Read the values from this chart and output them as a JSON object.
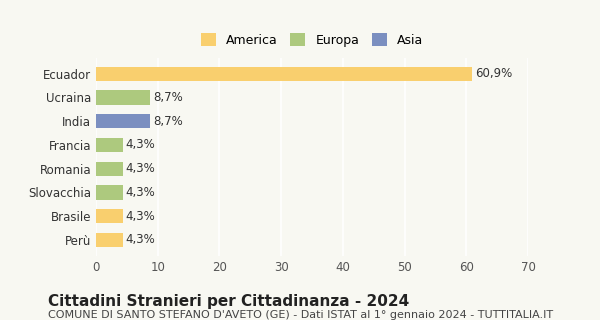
{
  "categories": [
    "Perù",
    "Brasile",
    "Slovacchia",
    "Romania",
    "Francia",
    "India",
    "Ucraina",
    "Ecuador"
  ],
  "values": [
    4.3,
    4.3,
    4.3,
    4.3,
    4.3,
    8.7,
    8.7,
    60.9
  ],
  "colors": [
    "#f9cf6e",
    "#f9cf6e",
    "#adc97e",
    "#adc97e",
    "#adc97e",
    "#7b8fc0",
    "#adc97e",
    "#f9cf6e"
  ],
  "labels": [
    "4,3%",
    "4,3%",
    "4,3%",
    "4,3%",
    "4,3%",
    "8,7%",
    "8,7%",
    "60,9%"
  ],
  "legend": [
    {
      "label": "America",
      "color": "#f9cf6e"
    },
    {
      "label": "Europa",
      "color": "#adc97e"
    },
    {
      "label": "Asia",
      "color": "#7b8fc0"
    }
  ],
  "xlim": [
    0,
    70
  ],
  "xticks": [
    0,
    10,
    20,
    30,
    40,
    50,
    60,
    70
  ],
  "title": "Cittadini Stranieri per Cittadinanza - 2024",
  "subtitle": "COMUNE DI SANTO STEFANO D'AVETO (GE) - Dati ISTAT al 1° gennaio 2024 - TUTTITALIA.IT",
  "background_color": "#f8f8f2",
  "grid_color": "#ffffff",
  "bar_height": 0.6,
  "label_fontsize": 8.5,
  "title_fontsize": 11,
  "subtitle_fontsize": 8
}
